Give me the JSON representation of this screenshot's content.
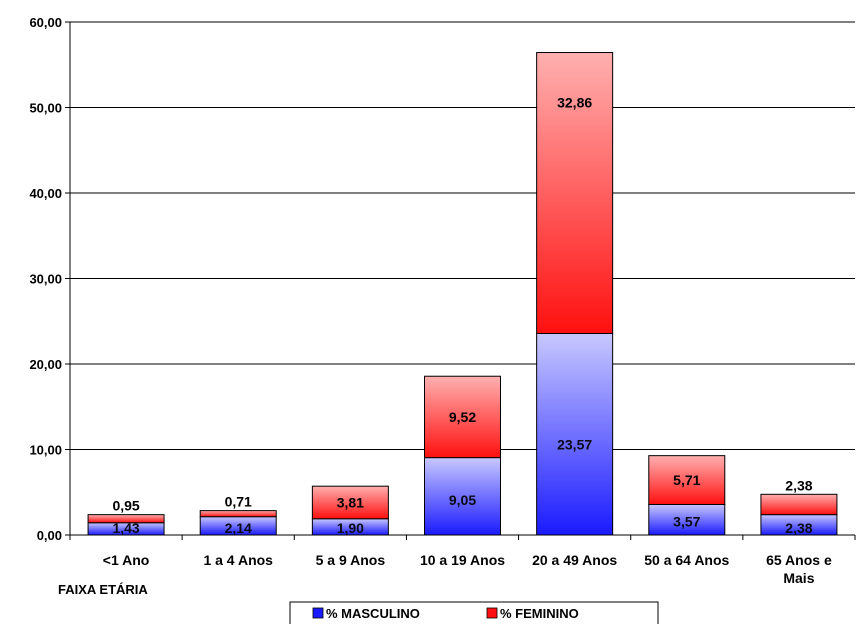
{
  "chart_data": {
    "type": "bar",
    "stacked": true,
    "categories": [
      [
        "<1 Ano"
      ],
      [
        "1 a 4 Anos"
      ],
      [
        "5 a 9 Anos"
      ],
      [
        "10 a 19 Anos"
      ],
      [
        "20 a 49 Anos"
      ],
      [
        "50 a 64 Anos"
      ],
      [
        "65 Anos e",
        "Mais"
      ]
    ],
    "series": [
      {
        "name": "% MASCULINO",
        "values": [
          1.43,
          2.14,
          1.9,
          9.05,
          23.57,
          3.57,
          2.38
        ],
        "labels": [
          "1,43",
          "2,14",
          "1,90",
          "9,05",
          "23,57",
          "3,57",
          "2,38"
        ]
      },
      {
        "name": "% FEMININO",
        "values": [
          0.95,
          0.71,
          3.81,
          9.52,
          32.86,
          5.71,
          2.38
        ],
        "labels": [
          "0,95",
          "0,71",
          "3,81",
          "9,52",
          "32,86",
          "5,71",
          "2,38"
        ]
      }
    ],
    "xlabel": "FAIXA ETÁRIA",
    "ylim": [
      0,
      60
    ],
    "yticks": [
      0,
      10,
      20,
      30,
      40,
      50,
      60
    ],
    "ytick_labels": [
      "0,00",
      "10,00",
      "20,00",
      "30,00",
      "40,00",
      "50,00",
      "60,00"
    ],
    "grid": true,
    "legend_position": "bottom",
    "colors": {
      "masculino_top": "#c8c8ff",
      "masculino_bottom": "#1a1aff",
      "feminino_top": "#ffb0b0",
      "feminino_bottom": "#ff1010"
    }
  }
}
